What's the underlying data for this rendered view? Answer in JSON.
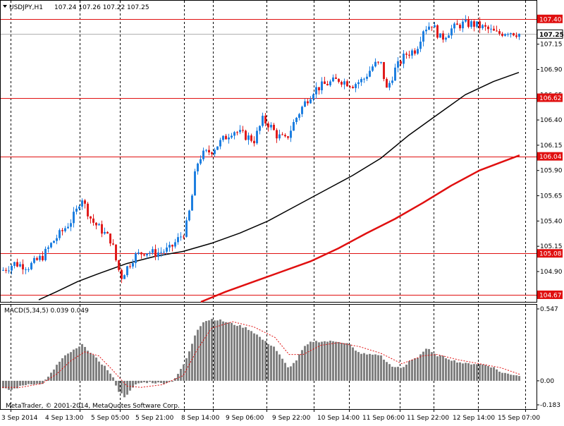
{
  "header": {
    "symbol": "USDJPY,H1",
    "ohlc": "107.24 107.26 107.22 107.25"
  },
  "copyright": "MetaTrader, © 2001-2014, MetaQuotes Software Corp.",
  "colors": {
    "bull": "#1e7fe0",
    "bear": "#e01c1c",
    "sma_black": "#000000",
    "sma_red": "#e01010",
    "level": "#e01010",
    "macd_hist": "#808080",
    "macd_signal": "#e01010"
  },
  "chart_data": [
    {
      "type": "candlestick",
      "title": "USDJPY,H1",
      "ylim": [
        104.6,
        107.58
      ],
      "y_ticks": [
        107.15,
        106.9,
        106.65,
        106.4,
        106.15,
        105.9,
        105.65,
        105.4,
        105.15,
        104.9
      ],
      "x_ticks": [
        "3 Sep 2014",
        "4 Sep 13:00",
        "5 Sep 05:00",
        "5 Sep 21:00",
        "8 Sep 14:00",
        "9 Sep 06:00",
        "9 Sep 22:00",
        "10 Sep 14:00",
        "11 Sep 06:00",
        "11 Sep 22:00",
        "12 Sep 14:00",
        "15 Sep 07:00"
      ],
      "grid": "vertical dashed",
      "levels": [
        {
          "label": "107.40",
          "value": 107.4
        },
        {
          "label": "106.62",
          "value": 106.62
        },
        {
          "label": "106.04",
          "value": 106.04
        },
        {
          "label": "105.08",
          "value": 105.08
        },
        {
          "label": "104.67",
          "value": 104.67
        }
      ],
      "current_price": {
        "label": "107.25",
        "value": 107.25
      },
      "price_path": [
        [
          0,
          104.9
        ],
        [
          20,
          104.98
        ],
        [
          40,
          104.95
        ],
        [
          60,
          105.05
        ],
        [
          75,
          105.2
        ],
        [
          88,
          105.3
        ],
        [
          100,
          105.4
        ],
        [
          108,
          105.5
        ],
        [
          115,
          105.65
        ],
        [
          120,
          105.55
        ],
        [
          130,
          105.4
        ],
        [
          145,
          105.3
        ],
        [
          158,
          105.2
        ],
        [
          166,
          104.95
        ],
        [
          172,
          104.85
        ],
        [
          178,
          104.92
        ],
        [
          190,
          105.05
        ],
        [
          205,
          105.1
        ],
        [
          220,
          105.08
        ],
        [
          240,
          105.12
        ],
        [
          262,
          105.3
        ],
        [
          270,
          105.55
        ],
        [
          278,
          105.95
        ],
        [
          285,
          106.05
        ],
        [
          300,
          106.1
        ],
        [
          315,
          106.2
        ],
        [
          330,
          106.3
        ],
        [
          345,
          106.25
        ],
        [
          360,
          106.2
        ],
        [
          372,
          106.4
        ],
        [
          382,
          106.35
        ],
        [
          392,
          106.25
        ],
        [
          405,
          106.2
        ],
        [
          418,
          106.4
        ],
        [
          430,
          106.55
        ],
        [
          445,
          106.7
        ],
        [
          460,
          106.75
        ],
        [
          480,
          106.8
        ],
        [
          500,
          106.75
        ],
        [
          515,
          106.8
        ],
        [
          530,
          106.95
        ],
        [
          540,
          106.95
        ],
        [
          548,
          106.7
        ],
        [
          560,
          106.9
        ],
        [
          575,
          107.05
        ],
        [
          590,
          107.1
        ],
        [
          600,
          107.3
        ],
        [
          612,
          107.35
        ],
        [
          625,
          107.2
        ],
        [
          640,
          107.3
        ],
        [
          655,
          107.35
        ],
        [
          670,
          107.35
        ],
        [
          690,
          107.3
        ],
        [
          705,
          107.25
        ],
        [
          720,
          107.28
        ],
        [
          737,
          107.25
        ]
      ],
      "sma_black": [
        [
          55,
          104.62
        ],
        [
          80,
          104.7
        ],
        [
          110,
          104.8
        ],
        [
          140,
          104.88
        ],
        [
          180,
          104.98
        ],
        [
          220,
          105.05
        ],
        [
          260,
          105.1
        ],
        [
          300,
          105.18
        ],
        [
          340,
          105.28
        ],
        [
          380,
          105.4
        ],
        [
          420,
          105.55
        ],
        [
          460,
          105.7
        ],
        [
          500,
          105.85
        ],
        [
          540,
          106.02
        ],
        [
          580,
          106.25
        ],
        [
          620,
          106.45
        ],
        [
          660,
          106.65
        ],
        [
          700,
          106.78
        ],
        [
          736,
          106.87
        ]
      ],
      "sma_red": [
        [
          285,
          104.6
        ],
        [
          320,
          104.7
        ],
        [
          360,
          104.8
        ],
        [
          400,
          104.9
        ],
        [
          440,
          105.0
        ],
        [
          480,
          105.13
        ],
        [
          520,
          105.28
        ],
        [
          560,
          105.42
        ],
        [
          600,
          105.58
        ],
        [
          640,
          105.75
        ],
        [
          680,
          105.9
        ],
        [
          710,
          105.98
        ],
        [
          737,
          106.05
        ]
      ]
    },
    {
      "type": "bar",
      "title": "MACD(5,34,5) 0.039 0.049",
      "ylim": [
        -0.183,
        0.547
      ],
      "y_ticks": [
        0.547,
        0.0,
        -0.183
      ],
      "histogram_path": [
        [
          3,
          -0.06
        ],
        [
          15,
          -0.07
        ],
        [
          25,
          -0.05
        ],
        [
          35,
          -0.03
        ],
        [
          45,
          -0.02
        ],
        [
          58,
          -0.03
        ],
        [
          70,
          0.04
        ],
        [
          80,
          0.12
        ],
        [
          90,
          0.18
        ],
        [
          100,
          0.22
        ],
        [
          110,
          0.25
        ],
        [
          118,
          0.28
        ],
        [
          126,
          0.22
        ],
        [
          138,
          0.16
        ],
        [
          150,
          0.1
        ],
        [
          160,
          0.02
        ],
        [
          168,
          -0.08
        ],
        [
          176,
          -0.12
        ],
        [
          184,
          -0.08
        ],
        [
          194,
          -0.02
        ],
        [
          210,
          -0.01
        ],
        [
          230,
          -0.02
        ],
        [
          245,
          0.0
        ],
        [
          258,
          0.1
        ],
        [
          268,
          0.22
        ],
        [
          278,
          0.38
        ],
        [
          288,
          0.45
        ],
        [
          300,
          0.47
        ],
        [
          312,
          0.46
        ],
        [
          325,
          0.44
        ],
        [
          338,
          0.42
        ],
        [
          350,
          0.4
        ],
        [
          362,
          0.36
        ],
        [
          375,
          0.3
        ],
        [
          388,
          0.26
        ],
        [
          398,
          0.18
        ],
        [
          408,
          0.1
        ],
        [
          418,
          0.14
        ],
        [
          430,
          0.25
        ],
        [
          442,
          0.3
        ],
        [
          460,
          0.3
        ],
        [
          480,
          0.3
        ],
        [
          495,
          0.28
        ],
        [
          505,
          0.22
        ],
        [
          520,
          0.2
        ],
        [
          538,
          0.2
        ],
        [
          548,
          0.14
        ],
        [
          560,
          0.1
        ],
        [
          572,
          0.1
        ],
        [
          582,
          0.16
        ],
        [
          592,
          0.18
        ],
        [
          605,
          0.25
        ],
        [
          615,
          0.2
        ],
        [
          630,
          0.18
        ],
        [
          645,
          0.15
        ],
        [
          660,
          0.13
        ],
        [
          675,
          0.13
        ],
        [
          690,
          0.12
        ],
        [
          700,
          0.1
        ],
        [
          712,
          0.06
        ],
        [
          725,
          0.05
        ],
        [
          736,
          0.04
        ]
      ],
      "signal_path": [
        [
          3,
          -0.05
        ],
        [
          30,
          -0.05
        ],
        [
          60,
          -0.02
        ],
        [
          80,
          0.05
        ],
        [
          100,
          0.15
        ],
        [
          120,
          0.22
        ],
        [
          140,
          0.19
        ],
        [
          160,
          0.08
        ],
        [
          180,
          -0.04
        ],
        [
          200,
          -0.05
        ],
        [
          230,
          -0.03
        ],
        [
          260,
          0.04
        ],
        [
          280,
          0.24
        ],
        [
          300,
          0.4
        ],
        [
          330,
          0.45
        ],
        [
          360,
          0.41
        ],
        [
          390,
          0.33
        ],
        [
          410,
          0.2
        ],
        [
          430,
          0.2
        ],
        [
          455,
          0.27
        ],
        [
          480,
          0.29
        ],
        [
          510,
          0.26
        ],
        [
          540,
          0.21
        ],
        [
          570,
          0.13
        ],
        [
          600,
          0.19
        ],
        [
          620,
          0.2
        ],
        [
          650,
          0.16
        ],
        [
          680,
          0.13
        ],
        [
          710,
          0.1
        ],
        [
          737,
          0.05
        ]
      ]
    }
  ]
}
